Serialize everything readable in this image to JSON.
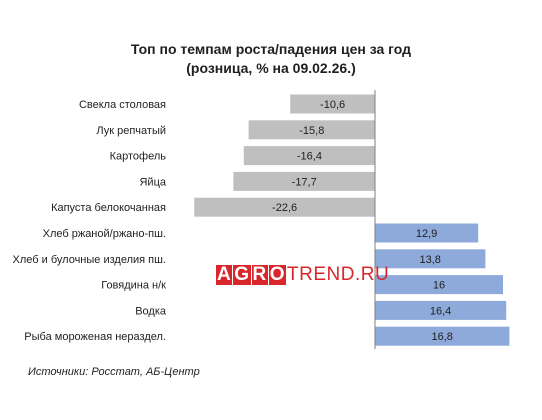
{
  "title_lines": [
    "Топ по темпам роста/падения цен за год",
    "(розница, % на 09.02.26.)"
  ],
  "source": "Источники: Росстат, АБ-Центр",
  "watermark": {
    "letters": [
      "A",
      "G",
      "R",
      "O"
    ],
    "rest": "TREND.RU"
  },
  "colors": {
    "negative": "#bfbfbf",
    "positive": "#8eaadb",
    "axis": "#7f7f7f",
    "watermark": "#d8262b"
  },
  "chart_data": {
    "type": "bar",
    "orientation": "horizontal",
    "title": "Топ по темпам роста/падения цен за год (розница, % на 09.02.26.)",
    "categories": [
      "Свекла столовая",
      "Лук репчатый",
      "Картофель",
      "Яйца",
      "Капуста белокочанная",
      "Хлеб ржаной/ржано-пш.",
      "Хлеб и булочные изделия пш.",
      "Говядина н/к",
      "Водка",
      "Рыба  мороженая нераздел."
    ],
    "values": [
      -10.6,
      -15.8,
      -16.4,
      -17.7,
      -22.6,
      12.9,
      13.8,
      16,
      16.4,
      16.8
    ],
    "value_labels": [
      "-10,6",
      "-15,8",
      "-16,4",
      "-17,7",
      "-22,6",
      "12,9",
      "13,8",
      "16",
      "16,4",
      "16,8"
    ],
    "xlim": [
      -22.6,
      16.8
    ],
    "grid": false,
    "legend": "none"
  }
}
